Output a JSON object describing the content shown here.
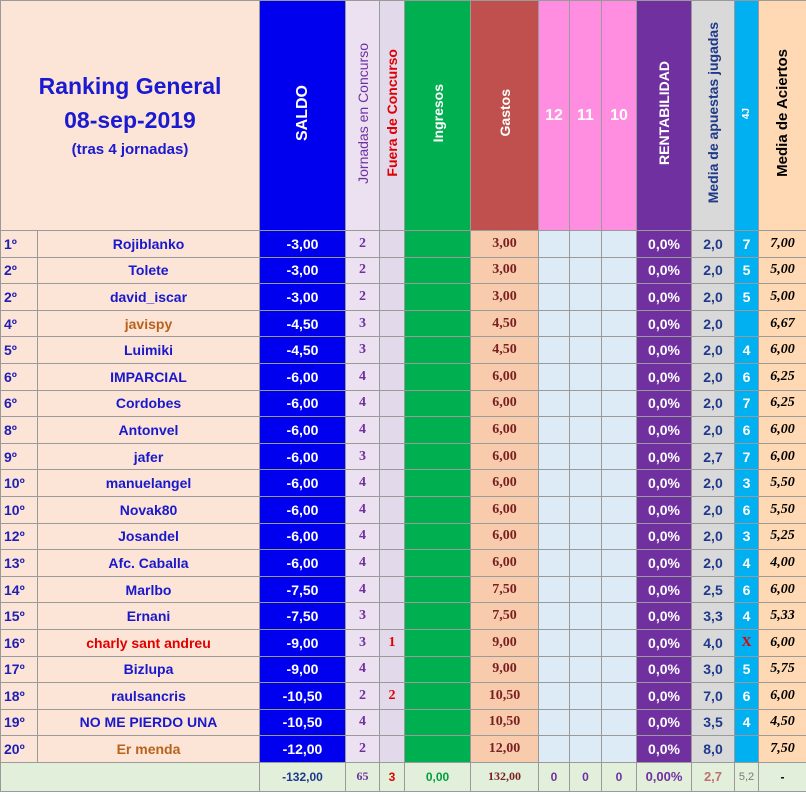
{
  "header": {
    "title_line1": "Ranking General",
    "title_line2": "08-sep-2019",
    "title_line3": "(tras 4 jornadas)",
    "col_saldo": "SALDO",
    "col_jornadas": "Jornadas en Concurso",
    "col_fuera": "Fuera de Concurso",
    "col_ingresos": "Ingresos",
    "col_gastos": "Gastos",
    "col_12": "12",
    "col_11": "11",
    "col_10": "10",
    "col_rentabilidad": "RENTABILIDAD",
    "col_media_apuestas": "Media de apuestas jugadas",
    "col_4j": "4J",
    "col_media_aciertos": "Media de Aciertos"
  },
  "rows": [
    {
      "rank": "1º",
      "name": "Rojiblanko",
      "name_color": "#1818cc",
      "saldo": "-3,00",
      "jornadas": "2",
      "fuera": "",
      "ingresos": "",
      "gastos": "3,00",
      "c12": "",
      "c11": "",
      "c10": "",
      "rent": "0,0%",
      "media": "2,0",
      "j4": "7",
      "aciertos": "7,00"
    },
    {
      "rank": "2º",
      "name": "Tolete",
      "name_color": "#1818cc",
      "saldo": "-3,00",
      "jornadas": "2",
      "fuera": "",
      "ingresos": "",
      "gastos": "3,00",
      "c12": "",
      "c11": "",
      "c10": "",
      "rent": "0,0%",
      "media": "2,0",
      "j4": "5",
      "aciertos": "5,00"
    },
    {
      "rank": "2º",
      "name": "david_iscar",
      "name_color": "#1818cc",
      "saldo": "-3,00",
      "jornadas": "2",
      "fuera": "",
      "ingresos": "",
      "gastos": "3,00",
      "c12": "",
      "c11": "",
      "c10": "",
      "rent": "0,0%",
      "media": "2,0",
      "j4": "5",
      "aciertos": "5,00"
    },
    {
      "rank": "4º",
      "name": "javispy",
      "name_color": "#b8621b",
      "saldo": "-4,50",
      "jornadas": "3",
      "fuera": "",
      "ingresos": "",
      "gastos": "4,50",
      "c12": "",
      "c11": "",
      "c10": "",
      "rent": "0,0%",
      "media": "2,0",
      "j4": "",
      "aciertos": "6,67"
    },
    {
      "rank": "5º",
      "name": "Luimiki",
      "name_color": "#1818cc",
      "saldo": "-4,50",
      "jornadas": "3",
      "fuera": "",
      "ingresos": "",
      "gastos": "4,50",
      "c12": "",
      "c11": "",
      "c10": "",
      "rent": "0,0%",
      "media": "2,0",
      "j4": "4",
      "aciertos": "6,00"
    },
    {
      "rank": "6º",
      "name": "IMPARCIAL",
      "name_color": "#1818cc",
      "saldo": "-6,00",
      "jornadas": "4",
      "fuera": "",
      "ingresos": "",
      "gastos": "6,00",
      "c12": "",
      "c11": "",
      "c10": "",
      "rent": "0,0%",
      "media": "2,0",
      "j4": "6",
      "aciertos": "6,25"
    },
    {
      "rank": "6º",
      "name": "Cordobes",
      "name_color": "#1818cc",
      "saldo": "-6,00",
      "jornadas": "4",
      "fuera": "",
      "ingresos": "",
      "gastos": "6,00",
      "c12": "",
      "c11": "",
      "c10": "",
      "rent": "0,0%",
      "media": "2,0",
      "j4": "7",
      "aciertos": "6,25"
    },
    {
      "rank": "8º",
      "name": "Antonvel",
      "name_color": "#1818cc",
      "saldo": "-6,00",
      "jornadas": "4",
      "fuera": "",
      "ingresos": "",
      "gastos": "6,00",
      "c12": "",
      "c11": "",
      "c10": "",
      "rent": "0,0%",
      "media": "2,0",
      "j4": "6",
      "aciertos": "6,00"
    },
    {
      "rank": "9º",
      "name": "jafer",
      "name_color": "#1818cc",
      "saldo": "-6,00",
      "jornadas": "3",
      "fuera": "",
      "ingresos": "",
      "gastos": "6,00",
      "c12": "",
      "c11": "",
      "c10": "",
      "rent": "0,0%",
      "media": "2,7",
      "j4": "7",
      "aciertos": "6,00"
    },
    {
      "rank": "10º",
      "name": "manuelangel",
      "name_color": "#1818cc",
      "saldo": "-6,00",
      "jornadas": "4",
      "fuera": "",
      "ingresos": "",
      "gastos": "6,00",
      "c12": "",
      "c11": "",
      "c10": "",
      "rent": "0,0%",
      "media": "2,0",
      "j4": "3",
      "aciertos": "5,50"
    },
    {
      "rank": "10º",
      "name": "Novak80",
      "name_color": "#1818cc",
      "saldo": "-6,00",
      "jornadas": "4",
      "fuera": "",
      "ingresos": "",
      "gastos": "6,00",
      "c12": "",
      "c11": "",
      "c10": "",
      "rent": "0,0%",
      "media": "2,0",
      "j4": "6",
      "aciertos": "5,50"
    },
    {
      "rank": "12º",
      "name": "Josandel",
      "name_color": "#1818cc",
      "saldo": "-6,00",
      "jornadas": "4",
      "fuera": "",
      "ingresos": "",
      "gastos": "6,00",
      "c12": "",
      "c11": "",
      "c10": "",
      "rent": "0,0%",
      "media": "2,0",
      "j4": "3",
      "aciertos": "5,25"
    },
    {
      "rank": "13º",
      "name": "Afc. Caballa",
      "name_color": "#1818cc",
      "saldo": "-6,00",
      "jornadas": "4",
      "fuera": "",
      "ingresos": "",
      "gastos": "6,00",
      "c12": "",
      "c11": "",
      "c10": "",
      "rent": "0,0%",
      "media": "2,0",
      "j4": "4",
      "aciertos": "4,00"
    },
    {
      "rank": "14º",
      "name": "Marlbo",
      "name_color": "#1818cc",
      "saldo": "-7,50",
      "jornadas": "4",
      "fuera": "",
      "ingresos": "",
      "gastos": "7,50",
      "c12": "",
      "c11": "",
      "c10": "",
      "rent": "0,0%",
      "media": "2,5",
      "j4": "6",
      "aciertos": "6,00"
    },
    {
      "rank": "15º",
      "name": "Ernani",
      "name_color": "#1818cc",
      "saldo": "-7,50",
      "jornadas": "3",
      "fuera": "",
      "ingresos": "",
      "gastos": "7,50",
      "c12": "",
      "c11": "",
      "c10": "",
      "rent": "0,0%",
      "media": "3,3",
      "j4": "4",
      "aciertos": "5,33"
    },
    {
      "rank": "16º",
      "name": "charly sant andreu",
      "name_color": "#e00000",
      "saldo": "-9,00",
      "jornadas": "3",
      "fuera": "1",
      "ingresos": "",
      "gastos": "9,00",
      "c12": "",
      "c11": "",
      "c10": "",
      "rent": "0,0%",
      "media": "4,0",
      "j4": "X",
      "aciertos": "6,00"
    },
    {
      "rank": "17º",
      "name": "Bizlupa",
      "name_color": "#1818cc",
      "saldo": "-9,00",
      "jornadas": "4",
      "fuera": "",
      "ingresos": "",
      "gastos": "9,00",
      "c12": "",
      "c11": "",
      "c10": "",
      "rent": "0,0%",
      "media": "3,0",
      "j4": "5",
      "aciertos": "5,75"
    },
    {
      "rank": "18º",
      "name": "raulsancris",
      "name_color": "#1818cc",
      "saldo": "-10,50",
      "jornadas": "2",
      "fuera": "2",
      "ingresos": "",
      "gastos": "10,50",
      "c12": "",
      "c11": "",
      "c10": "",
      "rent": "0,0%",
      "media": "7,0",
      "j4": "6",
      "aciertos": "6,00"
    },
    {
      "rank": "19º",
      "name": "NO ME PIERDO UNA",
      "name_color": "#1818cc",
      "saldo": "-10,50",
      "jornadas": "4",
      "fuera": "",
      "ingresos": "",
      "gastos": "10,50",
      "c12": "",
      "c11": "",
      "c10": "",
      "rent": "0,0%",
      "media": "3,5",
      "j4": "4",
      "aciertos": "4,50"
    },
    {
      "rank": "20º",
      "name": "Er menda",
      "name_color": "#b8621b",
      "saldo": "-12,00",
      "jornadas": "2",
      "fuera": "",
      "ingresos": "",
      "gastos": "12,00",
      "c12": "",
      "c11": "",
      "c10": "",
      "rent": "0,0%",
      "media": "8,0",
      "j4": "",
      "aciertos": "7,50"
    }
  ],
  "totals": {
    "saldo": "-132,00",
    "jornadas": "65",
    "fuera": "3",
    "ingresos": "0,00",
    "gastos": "132,00",
    "c12": "0",
    "c11": "0",
    "c10": "0",
    "rent": "0,00%",
    "media": "2,7",
    "j4": "5,2",
    "aciertos": "-"
  }
}
